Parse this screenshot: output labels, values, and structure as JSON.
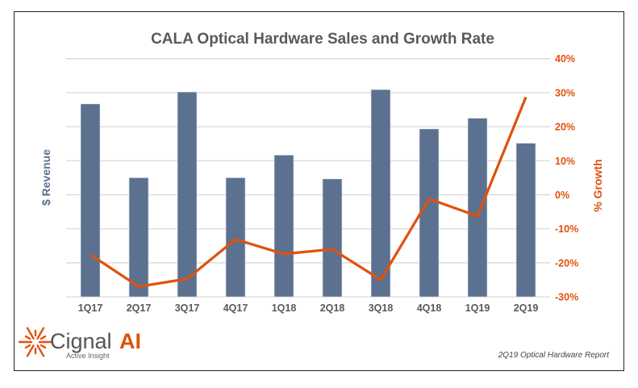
{
  "chart_data": {
    "type": "bar+line",
    "title": "CALA Optical Hardware Sales and Growth Rate",
    "categories": [
      "1Q17",
      "2Q17",
      "3Q17",
      "4Q17",
      "1Q18",
      "2Q18",
      "3Q18",
      "4Q18",
      "1Q19",
      "2Q19"
    ],
    "series": [
      {
        "name": "$ Revenue",
        "type": "bar",
        "axis": "left",
        "color": "#5c7190",
        "values": [
          81,
          50,
          86,
          50,
          59.5,
          49.5,
          87,
          70.5,
          75,
          64.5
        ]
      },
      {
        "name": "% Growth",
        "type": "line",
        "axis": "right",
        "color": "#e0510c",
        "values": [
          -17.6,
          -27.0,
          -24.7,
          -13.1,
          -17.4,
          -16.0,
          -25.0,
          -1.2,
          -6.3,
          28.7
        ]
      }
    ],
    "ylabel_left": "$ Revenue",
    "ylabel_right": "% Growth",
    "ylim_left": [
      0,
      100
    ],
    "ylim_right": [
      -30,
      40
    ],
    "right_ticks": [
      "-30%",
      "-20%",
      "-10%",
      "0%",
      "10%",
      "20%",
      "30%",
      "40%"
    ],
    "right_tick_values": [
      -30,
      -20,
      -10,
      0,
      10,
      20,
      30,
      40
    ],
    "grid": true,
    "legend": "none"
  },
  "branding": {
    "logo_name": "Cignal",
    "logo_ai": "AI",
    "logo_tagline": "Active Insight"
  },
  "footer": {
    "report": "2Q19 Optical Hardware Report"
  }
}
